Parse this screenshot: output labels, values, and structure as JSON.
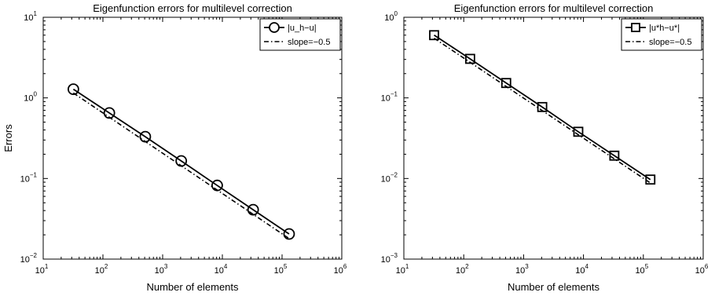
{
  "chart_data": [
    {
      "type": "line",
      "title": "Eigenfunction errors for multilevel correction",
      "xlabel": "Number of elements",
      "ylabel": "Errors",
      "xscale": "log",
      "yscale": "log",
      "xlim": [
        10,
        1000000
      ],
      "ylim": [
        0.01,
        10
      ],
      "x_tick_exponents": [
        1,
        2,
        3,
        4,
        5,
        6
      ],
      "y_tick_exponents": [
        -2,
        -1,
        0,
        1
      ],
      "legend_position": "top-right",
      "grid": false,
      "series": [
        {
          "name": "|u_h−u|",
          "marker": "circle",
          "style": "solid",
          "x": [
            32,
            128,
            512,
            2048,
            8192,
            32768,
            131072
          ],
          "y": [
            1.28,
            0.65,
            0.33,
            0.165,
            0.082,
            0.041,
            0.0205
          ]
        },
        {
          "name": "slope=−0.5",
          "marker": "none",
          "style": "dashdot",
          "x": [
            32,
            131072
          ],
          "y": [
            1.15,
            0.018
          ]
        }
      ]
    },
    {
      "type": "line",
      "title": "Eigenfunction errors for multilevel correction",
      "xlabel": "Number of elements",
      "ylabel": "",
      "xscale": "log",
      "yscale": "log",
      "xlim": [
        10,
        1000000
      ],
      "ylim": [
        0.001,
        1
      ],
      "x_tick_exponents": [
        1,
        2,
        3,
        4,
        5,
        6
      ],
      "y_tick_exponents": [
        -3,
        -2,
        -1,
        0
      ],
      "legend_position": "top-right",
      "grid": false,
      "series": [
        {
          "name": "|u*h−u*|",
          "marker": "square",
          "style": "solid",
          "x": [
            32,
            128,
            512,
            2048,
            8192,
            32768,
            131072
          ],
          "y": [
            0.6,
            0.305,
            0.153,
            0.077,
            0.038,
            0.0192,
            0.0097
          ]
        },
        {
          "name": "slope=−0.5",
          "marker": "none",
          "style": "dashdot",
          "x": [
            32,
            131072
          ],
          "y": [
            0.55,
            0.0088
          ]
        }
      ]
    }
  ]
}
